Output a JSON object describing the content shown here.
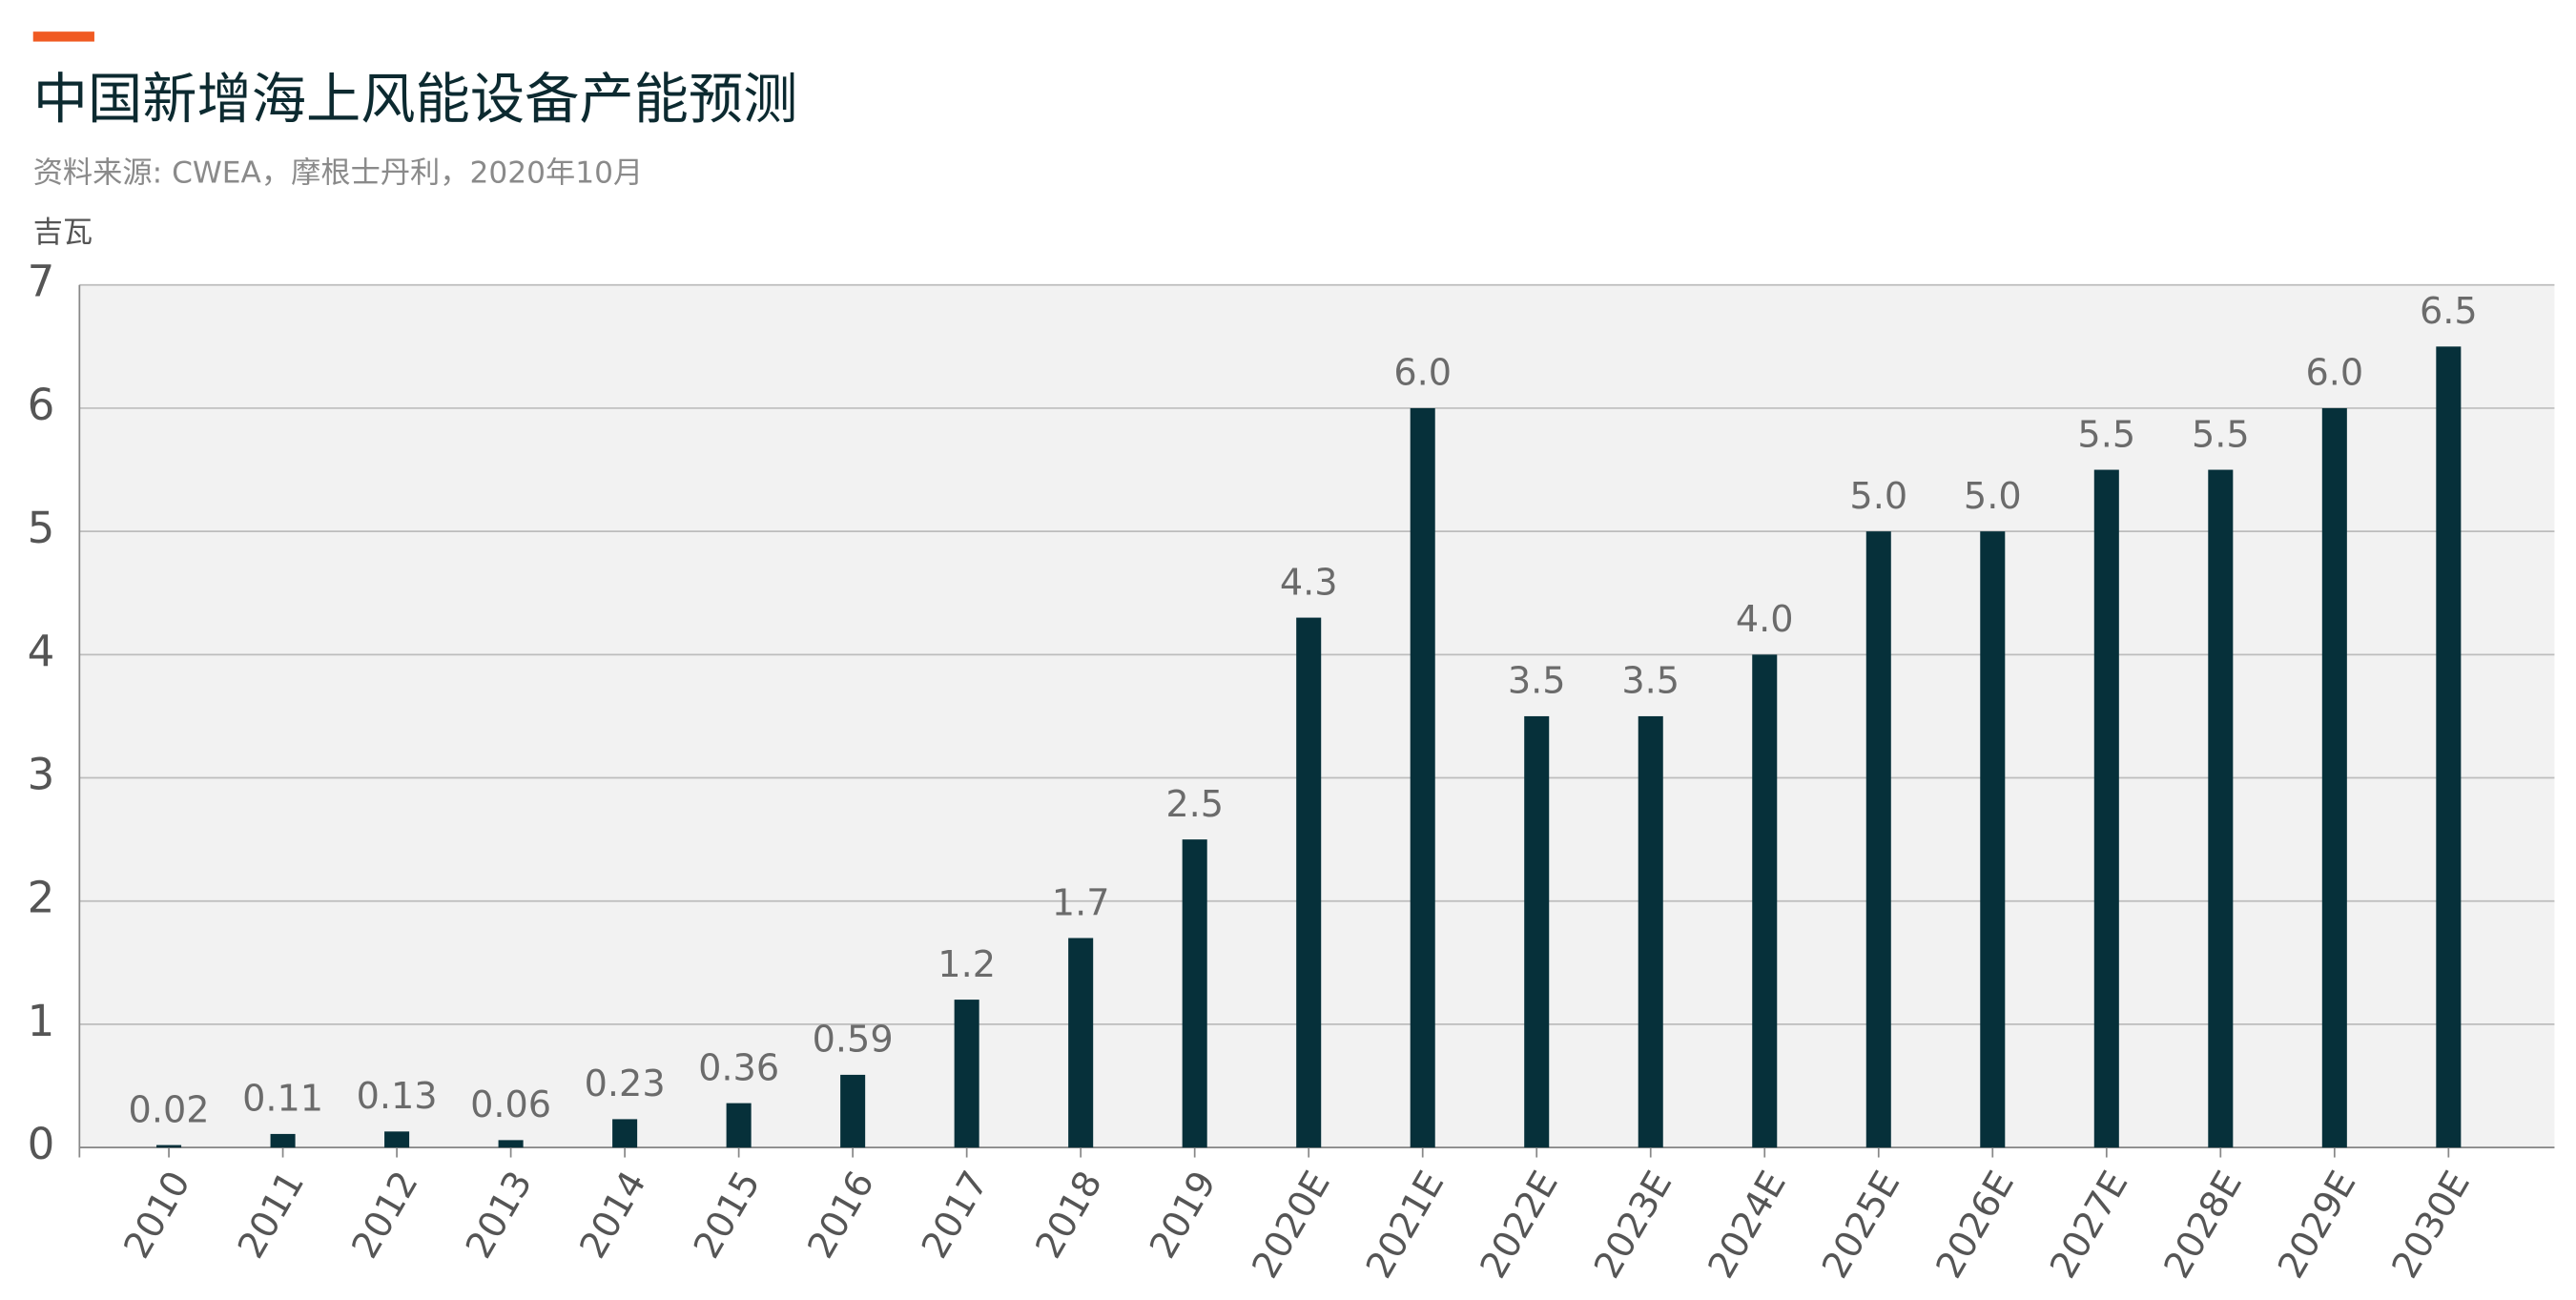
{
  "chart_data": {
    "type": "bar",
    "title": "中国新增海上风能设备产能预测",
    "subtitle": "资料来源: CWEA，摩根士丹利，2020年10月",
    "y_label": "吉瓦",
    "categories": [
      "2010",
      "2011",
      "2012",
      "2013",
      "2014",
      "2015",
      "2016",
      "2017",
      "2018",
      "2019",
      "2020E",
      "2021E",
      "2022E",
      "2023E",
      "2024E",
      "2025E",
      "2026E",
      "2027E",
      "2028E",
      "2029E",
      "2030E"
    ],
    "values": [
      0.02,
      0.11,
      0.13,
      0.06,
      0.23,
      0.36,
      0.59,
      1.2,
      1.7,
      2.5,
      4.3,
      6,
      3.5,
      3.5,
      4,
      5,
      5,
      5.5,
      5.5,
      6,
      6.5
    ],
    "value_labels": [
      "0.02",
      "0.11",
      "0.13",
      "0.06",
      "0.23",
      "0.36",
      "0.59",
      "1.2",
      "1.7",
      "2.5",
      "4.3",
      "6.0",
      "3.5",
      "3.5",
      "4.0",
      "5.0",
      "5.0",
      "5.5",
      "5.5",
      "6.0",
      "6.5"
    ],
    "color": "#06303a",
    "ylim": [
      0,
      7
    ],
    "yticks": [
      0,
      1,
      2,
      3,
      4,
      5,
      6,
      7
    ],
    "grid": true
  }
}
